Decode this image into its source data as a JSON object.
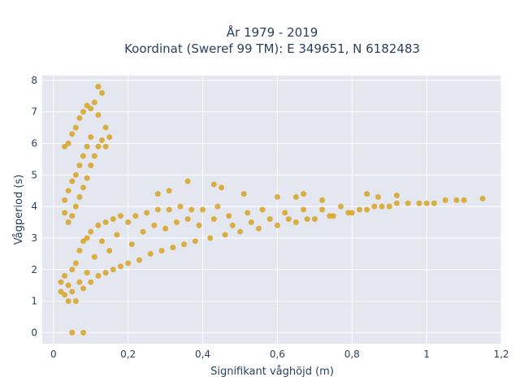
{
  "chart_data": {
    "type": "scatter",
    "title": "År 1979 - 2019",
    "subtitle": "Koordinat (Sweref 99 TM): E 349651, N 6182483",
    "xlabel": "Signifikant våghöjd (m)",
    "ylabel": "Vågperiod (s)",
    "xlim": [
      -0.03,
      1.2
    ],
    "ylim": [
      -0.35,
      8.15
    ],
    "xticks": [
      0,
      0.2,
      0.4,
      0.6,
      0.8,
      1,
      1.2
    ],
    "xtick_labels": [
      "0",
      "0,2",
      "0,4",
      "0,6",
      "0,8",
      "1",
      "1,2"
    ],
    "yticks": [
      0,
      1,
      2,
      3,
      4,
      5,
      6,
      7,
      8
    ],
    "ytick_labels": [
      "0",
      "1",
      "2",
      "3",
      "4",
      "5",
      "6",
      "7",
      "8"
    ],
    "grid": true,
    "marker_color": "#d4a017",
    "plot_bg": "#e5e7f0",
    "points": [
      [
        0.02,
        1.3
      ],
      [
        0.02,
        1.6
      ],
      [
        0.03,
        1.2
      ],
      [
        0.03,
        1.8
      ],
      [
        0.04,
        1.0
      ],
      [
        0.04,
        1.5
      ],
      [
        0.05,
        2.0
      ],
      [
        0.05,
        1.3
      ],
      [
        0.06,
        2.2
      ],
      [
        0.06,
        1.0
      ],
      [
        0.07,
        2.6
      ],
      [
        0.07,
        1.6
      ],
      [
        0.08,
        2.9
      ],
      [
        0.08,
        1.4
      ],
      [
        0.09,
        3.0
      ],
      [
        0.09,
        1.9
      ],
      [
        0.1,
        3.2
      ],
      [
        0.1,
        1.6
      ],
      [
        0.11,
        2.4
      ],
      [
        0.12,
        3.4
      ],
      [
        0.12,
        1.8
      ],
      [
        0.13,
        2.9
      ],
      [
        0.14,
        3.5
      ],
      [
        0.14,
        1.9
      ],
      [
        0.15,
        2.6
      ],
      [
        0.16,
        3.6
      ],
      [
        0.16,
        2.0
      ],
      [
        0.17,
        3.1
      ],
      [
        0.18,
        3.7
      ],
      [
        0.18,
        2.1
      ],
      [
        0.2,
        3.5
      ],
      [
        0.2,
        2.2
      ],
      [
        0.21,
        2.8
      ],
      [
        0.22,
        3.7
      ],
      [
        0.23,
        2.3
      ],
      [
        0.24,
        3.2
      ],
      [
        0.25,
        3.8
      ],
      [
        0.26,
        2.5
      ],
      [
        0.27,
        3.4
      ],
      [
        0.28,
        3.9
      ],
      [
        0.29,
        2.6
      ],
      [
        0.3,
        3.3
      ],
      [
        0.31,
        3.9
      ],
      [
        0.32,
        2.7
      ],
      [
        0.33,
        3.5
      ],
      [
        0.34,
        4.0
      ],
      [
        0.35,
        2.8
      ],
      [
        0.36,
        3.6
      ],
      [
        0.37,
        3.9
      ],
      [
        0.38,
        2.9
      ],
      [
        0.39,
        3.4
      ],
      [
        0.4,
        3.9
      ],
      [
        0.42,
        3.0
      ],
      [
        0.43,
        3.6
      ],
      [
        0.44,
        4.0
      ],
      [
        0.46,
        3.1
      ],
      [
        0.47,
        3.7
      ],
      [
        0.48,
        3.4
      ],
      [
        0.5,
        3.2
      ],
      [
        0.52,
        3.8
      ],
      [
        0.53,
        3.5
      ],
      [
        0.55,
        3.3
      ],
      [
        0.56,
        3.9
      ],
      [
        0.58,
        3.6
      ],
      [
        0.6,
        3.4
      ],
      [
        0.62,
        3.8
      ],
      [
        0.63,
        3.6
      ],
      [
        0.65,
        3.5
      ],
      [
        0.67,
        3.9
      ],
      [
        0.68,
        3.6
      ],
      [
        0.7,
        3.6
      ],
      [
        0.72,
        3.9
      ],
      [
        0.74,
        3.7
      ],
      [
        0.75,
        3.7
      ],
      [
        0.77,
        4.0
      ],
      [
        0.79,
        3.8
      ],
      [
        0.8,
        3.8
      ],
      [
        0.82,
        3.9
      ],
      [
        0.84,
        3.9
      ],
      [
        0.86,
        4.0
      ],
      [
        0.88,
        4.0
      ],
      [
        0.9,
        4.0
      ],
      [
        0.92,
        4.1
      ],
      [
        0.95,
        4.1
      ],
      [
        0.98,
        4.1
      ],
      [
        1.0,
        4.1
      ],
      [
        1.02,
        4.1
      ],
      [
        1.05,
        4.2
      ],
      [
        1.08,
        4.2
      ],
      [
        1.1,
        4.2
      ],
      [
        1.15,
        4.25
      ],
      [
        0.03,
        3.8
      ],
      [
        0.03,
        4.2
      ],
      [
        0.04,
        4.5
      ],
      [
        0.05,
        4.8
      ],
      [
        0.06,
        5.0
      ],
      [
        0.07,
        5.3
      ],
      [
        0.08,
        5.6
      ],
      [
        0.09,
        5.9
      ],
      [
        0.1,
        6.2
      ],
      [
        0.03,
        5.9
      ],
      [
        0.04,
        6.0
      ],
      [
        0.05,
        6.3
      ],
      [
        0.06,
        6.5
      ],
      [
        0.07,
        6.8
      ],
      [
        0.08,
        7.0
      ],
      [
        0.09,
        7.2
      ],
      [
        0.1,
        7.1
      ],
      [
        0.11,
        7.3
      ],
      [
        0.12,
        6.9
      ],
      [
        0.12,
        7.8
      ],
      [
        0.13,
        7.6
      ],
      [
        0.14,
        6.5
      ],
      [
        0.15,
        6.2
      ],
      [
        0.11,
        5.6
      ],
      [
        0.12,
        5.9
      ],
      [
        0.13,
        6.1
      ],
      [
        0.14,
        5.9
      ],
      [
        0.1,
        5.3
      ],
      [
        0.09,
        4.9
      ],
      [
        0.08,
        4.6
      ],
      [
        0.07,
        4.3
      ],
      [
        0.06,
        4.0
      ],
      [
        0.05,
        3.7
      ],
      [
        0.04,
        3.5
      ],
      [
        0.05,
        0.0
      ],
      [
        0.08,
        0.0
      ],
      [
        0.31,
        4.5
      ],
      [
        0.36,
        4.8
      ],
      [
        0.43,
        4.7
      ],
      [
        0.51,
        4.4
      ],
      [
        0.6,
        4.3
      ],
      [
        0.65,
        4.3
      ],
      [
        0.72,
        4.2
      ],
      [
        0.84,
        4.4
      ],
      [
        0.87,
        4.3
      ],
      [
        0.92,
        4.35
      ],
      [
        0.45,
        4.6
      ],
      [
        0.28,
        4.4
      ],
      [
        0.67,
        4.4
      ]
    ]
  }
}
